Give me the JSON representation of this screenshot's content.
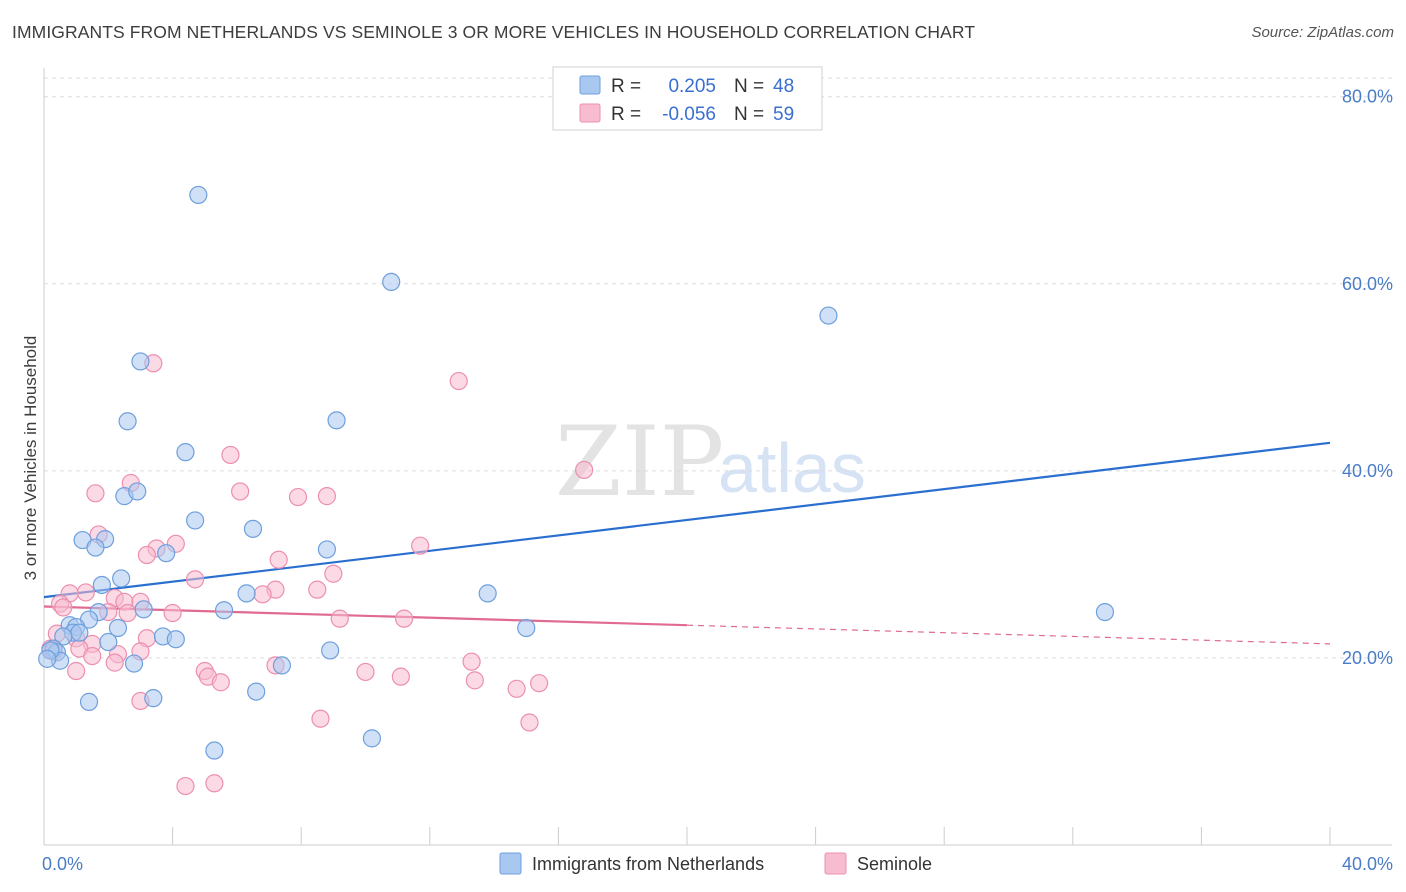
{
  "title": "IMMIGRANTS FROM NETHERLANDS VS SEMINOLE 3 OR MORE VEHICLES IN HOUSEHOLD CORRELATION CHART",
  "source": "Source: ZipAtlas.com",
  "watermark": {
    "zip": "ZIP",
    "atlas": "atlas"
  },
  "colors": {
    "blue_fill": "#a9c8f0",
    "blue_stroke": "#6f9fdc",
    "blue_line": "#2a6fd0",
    "pink_fill": "#f7bcd0",
    "pink_stroke": "#ec8fb0",
    "pink_line": "#e06a92",
    "grid": "#dcdcdc",
    "tick_text": "#4a7cc7"
  },
  "legend": {
    "rows": [
      {
        "r_label": "R =",
        "r_value": "0.205",
        "n_label": "N =",
        "n_value": "48"
      },
      {
        "r_label": "R =",
        "r_value": "-0.056",
        "n_label": "N =",
        "n_value": "59"
      }
    ]
  },
  "chart_data": {
    "type": "scatter",
    "title": "IMMIGRANTS FROM NETHERLANDS VS SEMINOLE 3 OR MORE VEHICLES IN HOUSEHOLD CORRELATION CHART",
    "xlabel": "",
    "ylabel": "3 or more Vehicles in Household",
    "xlim": [
      0,
      40
    ],
    "ylim": [
      0,
      82
    ],
    "grid": true,
    "x_tick_labels": [
      "0.0%",
      "40.0%"
    ],
    "y_ticks": [
      20,
      40,
      60,
      80
    ],
    "y_tick_labels": [
      "20.0%",
      "40.0%",
      "60.0%",
      "80.0%"
    ],
    "legend_position": "bottom",
    "series": [
      {
        "name": "Immigrants from Netherlands",
        "color": "blue",
        "r": 0.205,
        "n": 48,
        "trend": {
          "x": [
            0,
            40
          ],
          "y": [
            26.5,
            43.0
          ],
          "dashed_from": null
        },
        "points": [
          [
            4.8,
            69.5
          ],
          [
            10.8,
            60.2
          ],
          [
            24.4,
            56.6
          ],
          [
            3.0,
            51.7
          ],
          [
            2.6,
            45.3
          ],
          [
            9.1,
            45.4
          ],
          [
            4.4,
            42.0
          ],
          [
            2.5,
            37.3
          ],
          [
            2.9,
            37.8
          ],
          [
            4.7,
            34.7
          ],
          [
            6.5,
            33.8
          ],
          [
            1.2,
            32.6
          ],
          [
            1.9,
            32.7
          ],
          [
            1.6,
            31.8
          ],
          [
            8.8,
            31.6
          ],
          [
            3.8,
            31.2
          ],
          [
            2.4,
            28.5
          ],
          [
            1.8,
            27.8
          ],
          [
            6.3,
            26.9
          ],
          [
            13.8,
            26.9
          ],
          [
            3.1,
            25.2
          ],
          [
            5.6,
            25.1
          ],
          [
            1.7,
            24.9
          ],
          [
            1.4,
            24.1
          ],
          [
            33.0,
            24.9
          ],
          [
            0.8,
            23.5
          ],
          [
            1.0,
            23.3
          ],
          [
            2.3,
            23.2
          ],
          [
            15.0,
            23.2
          ],
          [
            0.9,
            22.7
          ],
          [
            1.1,
            22.7
          ],
          [
            0.6,
            22.3
          ],
          [
            3.7,
            22.3
          ],
          [
            4.1,
            22.0
          ],
          [
            2.0,
            21.7
          ],
          [
            0.3,
            21.0
          ],
          [
            0.4,
            20.6
          ],
          [
            8.9,
            20.8
          ],
          [
            0.5,
            19.7
          ],
          [
            2.8,
            19.4
          ],
          [
            7.4,
            19.2
          ],
          [
            6.6,
            16.4
          ],
          [
            1.4,
            15.3
          ],
          [
            3.4,
            15.7
          ],
          [
            10.2,
            11.4
          ],
          [
            5.3,
            10.1
          ],
          [
            0.2,
            20.8
          ],
          [
            0.1,
            19.9
          ]
        ]
      },
      {
        "name": "Seminole",
        "color": "pink",
        "r": -0.056,
        "n": 59,
        "trend": {
          "x": [
            0,
            40
          ],
          "y": [
            25.5,
            21.5
          ],
          "dashed_from": 20
        },
        "points": [
          [
            3.4,
            51.5
          ],
          [
            12.9,
            49.6
          ],
          [
            16.8,
            40.1
          ],
          [
            5.8,
            41.7
          ],
          [
            2.7,
            38.7
          ],
          [
            1.6,
            37.6
          ],
          [
            6.1,
            37.8
          ],
          [
            7.9,
            37.2
          ],
          [
            8.8,
            37.3
          ],
          [
            1.7,
            33.2
          ],
          [
            4.1,
            32.2
          ],
          [
            11.7,
            32.0
          ],
          [
            3.5,
            31.7
          ],
          [
            3.2,
            31.0
          ],
          [
            7.3,
            30.5
          ],
          [
            9.0,
            29.0
          ],
          [
            4.7,
            28.4
          ],
          [
            7.2,
            27.3
          ],
          [
            8.5,
            27.3
          ],
          [
            1.3,
            27.0
          ],
          [
            0.8,
            26.9
          ],
          [
            6.8,
            26.8
          ],
          [
            2.2,
            26.4
          ],
          [
            2.5,
            26.0
          ],
          [
            3.0,
            26.0
          ],
          [
            0.5,
            25.8
          ],
          [
            0.6,
            25.4
          ],
          [
            2.6,
            24.8
          ],
          [
            2.0,
            24.9
          ],
          [
            4.0,
            24.8
          ],
          [
            9.2,
            24.2
          ],
          [
            11.2,
            24.2
          ],
          [
            0.4,
            22.6
          ],
          [
            1.0,
            22.1
          ],
          [
            3.2,
            22.1
          ],
          [
            1.5,
            21.5
          ],
          [
            0.2,
            21.0
          ],
          [
            1.1,
            21.0
          ],
          [
            0.3,
            20.7
          ],
          [
            3.0,
            20.7
          ],
          [
            1.5,
            20.2
          ],
          [
            2.3,
            20.4
          ],
          [
            13.3,
            19.6
          ],
          [
            7.2,
            19.2
          ],
          [
            2.2,
            19.5
          ],
          [
            5.0,
            18.6
          ],
          [
            5.1,
            18.0
          ],
          [
            10.0,
            18.5
          ],
          [
            1.0,
            18.6
          ],
          [
            11.1,
            18.0
          ],
          [
            13.4,
            17.6
          ],
          [
            5.5,
            17.4
          ],
          [
            15.4,
            17.3
          ],
          [
            14.7,
            16.7
          ],
          [
            3.0,
            15.4
          ],
          [
            8.6,
            13.5
          ],
          [
            15.1,
            13.1
          ],
          [
            4.4,
            6.3
          ],
          [
            5.3,
            6.6
          ]
        ]
      }
    ]
  },
  "bottom_legend": [
    "Immigrants from Netherlands",
    "Seminole"
  ]
}
